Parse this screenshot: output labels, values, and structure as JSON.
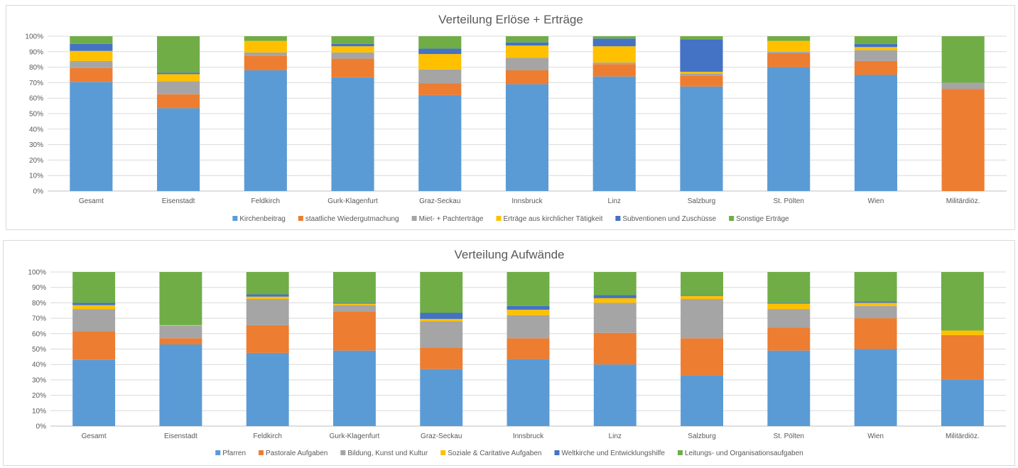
{
  "chart_data": [
    {
      "type": "bar",
      "stacked": true,
      "title": "Verteilung Erlöse + Erträge",
      "xlabel": "",
      "ylabel": "",
      "ylim": [
        0,
        100
      ],
      "yticks": [
        "0%",
        "10%",
        "20%",
        "30%",
        "40%",
        "50%",
        "60%",
        "70%",
        "80%",
        "90%",
        "100%"
      ],
      "grid": true,
      "legend_position": "bottom",
      "categories": [
        "Gesamt",
        "Eisenstadt",
        "Feldkirch",
        "Gurk-Klagenfurt",
        "Graz-Seckau",
        "Innsbruck",
        "Linz",
        "Salzburg",
        "St. Pölten",
        "Wien",
        "Militärdiöz."
      ],
      "series": [
        {
          "name": "Kirchenbeitrag",
          "color": "#5b9bd5",
          "values": [
            70.5,
            53.5,
            78,
            73.5,
            62,
            69,
            74,
            67.5,
            80,
            75,
            0
          ]
        },
        {
          "name": "staatliche Wiedergutmachung",
          "color": "#ed7d31",
          "values": [
            9,
            9,
            9.5,
            12,
            7.5,
            9,
            8,
            7,
            9,
            9,
            66
          ]
        },
        {
          "name": "Miet- + Pachterträge",
          "color": "#a5a5a5",
          "values": [
            4.5,
            8.5,
            2,
            4,
            9,
            8,
            1,
            1.5,
            1,
            7,
            4
          ]
        },
        {
          "name": "Erträge aus kirchlicher Tätigkeit",
          "color": "#ffc000",
          "values": [
            6.5,
            4.5,
            7.5,
            4,
            10,
            8,
            10.5,
            1,
            7,
            2,
            0
          ]
        },
        {
          "name": "Subventionen und Zuschüsse",
          "color": "#4472c4",
          "values": [
            4.5,
            1,
            0,
            1.5,
            3.5,
            2,
            5,
            21,
            0,
            2,
            0
          ]
        },
        {
          "name": "Sonstige Erträge",
          "color": "#70ad47",
          "values": [
            5,
            23.5,
            3,
            5,
            8,
            4,
            1.5,
            2,
            3,
            5,
            30
          ]
        }
      ]
    },
    {
      "type": "bar",
      "stacked": true,
      "title": "Verteilung Aufwände",
      "xlabel": "",
      "ylabel": "",
      "ylim": [
        0,
        100
      ],
      "yticks": [
        "0%",
        "10%",
        "20%",
        "30%",
        "40%",
        "50%",
        "60%",
        "70%",
        "80%",
        "90%",
        "100%"
      ],
      "grid": true,
      "legend_position": "bottom",
      "categories": [
        "Gesamt",
        "Eisenstadt",
        "Feldkirch",
        "Gurk-Klagenfurt",
        "Graz-Seckau",
        "Innsbruck",
        "Linz",
        "Salzburg",
        "St. Pölten",
        "Wien",
        "Militärdiöz."
      ],
      "series": [
        {
          "name": "Pfarren",
          "color": "#5b9bd5",
          "values": [
            43,
            53,
            47.5,
            49,
            37,
            43.5,
            40,
            33,
            49,
            50,
            30
          ]
        },
        {
          "name": "Pastorale Aufgaben",
          "color": "#ed7d31",
          "values": [
            18.5,
            4,
            18,
            25.5,
            14,
            13.5,
            20.5,
            24,
            15,
            20,
            29
          ]
        },
        {
          "name": "Bildung, Kunst und Kultur",
          "color": "#a5a5a5",
          "values": [
            14.5,
            8,
            17,
            4,
            17,
            15,
            19.5,
            25.5,
            12,
            8,
            0
          ]
        },
        {
          "name": "Soziale & Caritative Aufgaben",
          "color": "#ffc000",
          "values": [
            2.5,
            0.5,
            1.5,
            1,
            1.5,
            3.5,
            3,
            2,
            3.5,
            2,
            3
          ]
        },
        {
          "name": "Weltkirche und Entwicklungshilfe",
          "color": "#4472c4",
          "values": [
            1.5,
            0,
            1.5,
            0.5,
            4,
            2.5,
            2,
            0.5,
            0.5,
            1,
            0
          ]
        },
        {
          "name": "Leitungs- und Organisationsaufgaben",
          "color": "#70ad47",
          "values": [
            20,
            34.5,
            14.5,
            20,
            26.5,
            22,
            15,
            15,
            20,
            19,
            38
          ]
        }
      ]
    }
  ]
}
